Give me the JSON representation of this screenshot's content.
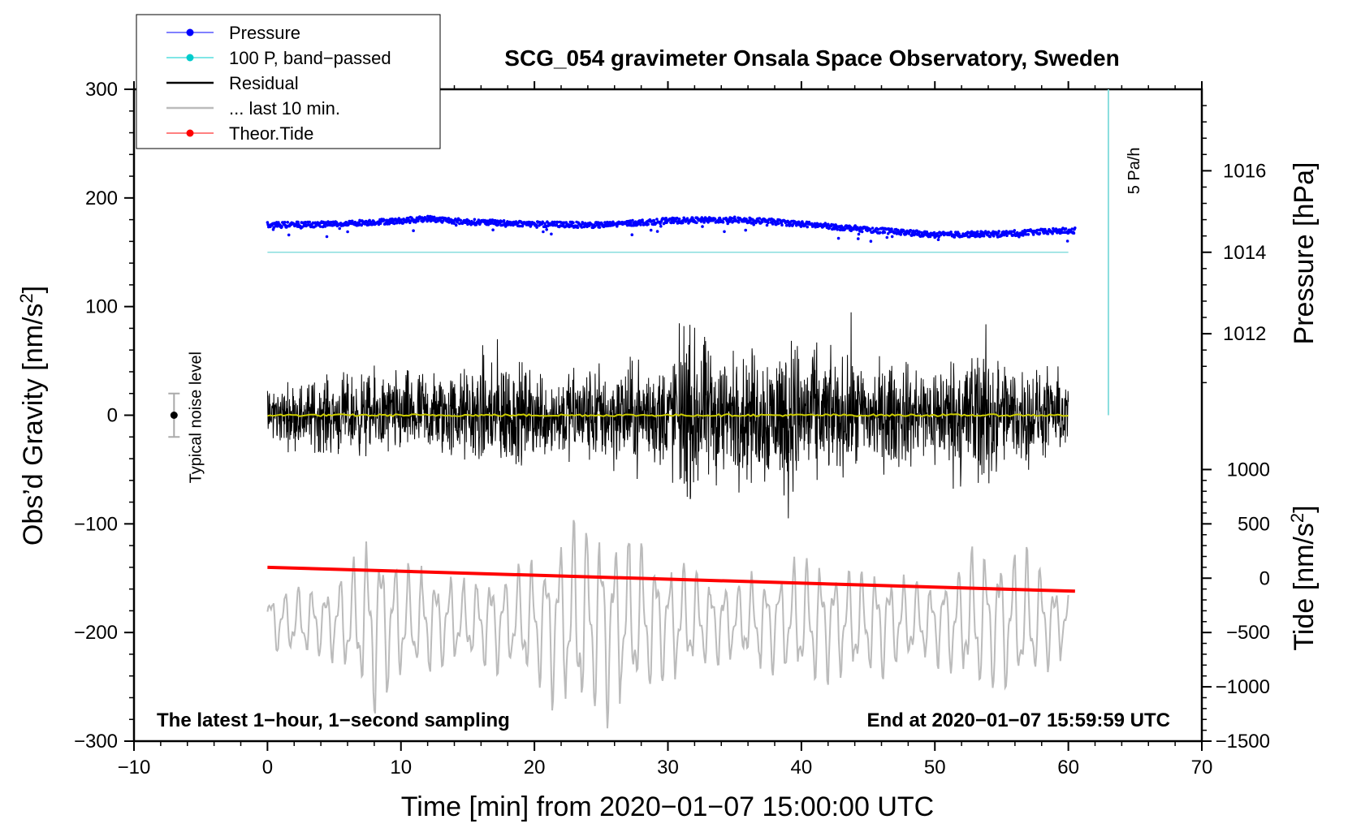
{
  "chart_data": {
    "type": "line",
    "title": "SCG_054 gravimeter Onsala Space Observatory, Sweden",
    "xlabel": "Time [min] from 2020−01−07 15:00:00 UTC",
    "ylabel": "Obs’d Gravity [nm/s",
    "ylabel_sup": "2",
    "ylabel_end": "]",
    "right_pressure_label": "Pressure [hPa]",
    "right_tide_label": "Tide [nm/s",
    "right_tide_sup": "2",
    "right_tide_end": "]",
    "xlim": [
      -10,
      70
    ],
    "ylim": [
      -300,
      300
    ],
    "x_ticks": [
      "−10",
      "0",
      "10",
      "20",
      "30",
      "40",
      "50",
      "60",
      "70"
    ],
    "x_tick_values": [
      -10,
      0,
      10,
      20,
      30,
      40,
      50,
      60,
      70
    ],
    "y_ticks": [
      "300",
      "200",
      "100",
      "0",
      "−100",
      "−200",
      "−300"
    ],
    "y_tick_values": [
      300,
      200,
      100,
      0,
      -100,
      -200,
      -300
    ],
    "pressure_ticks": [
      "1016",
      "1014",
      "1012"
    ],
    "pressure_tick_values": [
      1016,
      1014,
      1012
    ],
    "pressure_axis_map": {
      "hpa": [
        1014,
        1016
      ],
      "gravity": [
        150,
        225
      ]
    },
    "tide_ticks": [
      "1000",
      "500",
      "0",
      "−500",
      "−1000",
      "−1500"
    ],
    "tide_tick_values": [
      1000,
      500,
      0,
      -500,
      -1000,
      -1500
    ],
    "tide_axis_map": {
      "tide": [
        -1500,
        1000
      ],
      "gravity": [
        -300,
        -50
      ]
    },
    "legend": [
      {
        "label": "Pressure",
        "color": "#0000ff",
        "marker": true
      },
      {
        "label": "100 P, band−passed",
        "color": "#00cccc",
        "marker": true
      },
      {
        "label": "Residual",
        "color": "#000000",
        "marker": false
      },
      {
        "label": "... last 10 min.",
        "color": "#bbbbbb",
        "marker": false
      },
      {
        "label": "Theor.Tide",
        "color": "#ff0000",
        "marker": true
      }
    ],
    "series": [
      {
        "name": "Pressure",
        "color": "#0000ff",
        "style": "dots",
        "x_range": [
          0,
          60.5
        ],
        "approx_gravity_scale": {
          "x": [
            0,
            5,
            10,
            12,
            15,
            20,
            25,
            30,
            35,
            38,
            42,
            46,
            50,
            55,
            60
          ],
          "y": [
            175,
            176,
            179,
            181,
            178,
            176,
            175,
            179,
            180,
            178,
            174,
            170,
            166,
            167,
            170
          ]
        },
        "scatter_amplitude": 5
      },
      {
        "name": "100 P, band−passed",
        "color": "#88dddd",
        "style": "line",
        "x_range": [
          0,
          60
        ],
        "value": 150
      },
      {
        "name": "Residual",
        "color": "#000000",
        "style": "noise",
        "x_range": [
          0,
          60
        ],
        "amplitude_envelope": {
          "x": [
            0,
            5,
            10,
            15,
            17,
            20,
            25,
            30,
            31,
            35,
            39.5,
            42,
            45,
            50,
            54,
            55,
            60
          ],
          "amp": [
            35,
            50,
            55,
            60,
            85,
            55,
            65,
            70,
            110,
            80,
            100,
            75,
            70,
            65,
            105,
            70,
            50
          ]
        }
      },
      {
        "name": "Residual mean",
        "color": "#cccc00",
        "style": "line",
        "x_range": [
          0,
          60
        ],
        "value": 0
      },
      {
        "name": "... last 10 min.",
        "color": "#bbbbbb",
        "style": "oscillation",
        "x_range": [
          0,
          60
        ],
        "center": -190,
        "amplitude_envelope": {
          "x": [
            0,
            5,
            8,
            10,
            15,
            20,
            24,
            26,
            30,
            35,
            40,
            45,
            50,
            53,
            57,
            60
          ],
          "amp": [
            30,
            40,
            90,
            60,
            40,
            60,
            110,
            90,
            60,
            40,
            60,
            55,
            40,
            75,
            70,
            30
          ]
        }
      },
      {
        "name": "Theor.Tide",
        "color": "#ff0000",
        "style": "dots_line",
        "x": [
          0,
          60.5
        ],
        "y": [
          -140,
          -162
        ]
      }
    ],
    "noise_level": {
      "label": "Typical noise level",
      "x": -7,
      "center": 0,
      "half_range": 20
    },
    "annotations": {
      "left_bottom": "The latest 1−hour, 1−second sampling",
      "right_bottom": "End at 2020−01−07 15:59:59 UTC",
      "scale_bar_label": "5 Pa/h",
      "scale_bar_x": 63,
      "scale_bar_y": [
        0,
        300
      ]
    }
  }
}
